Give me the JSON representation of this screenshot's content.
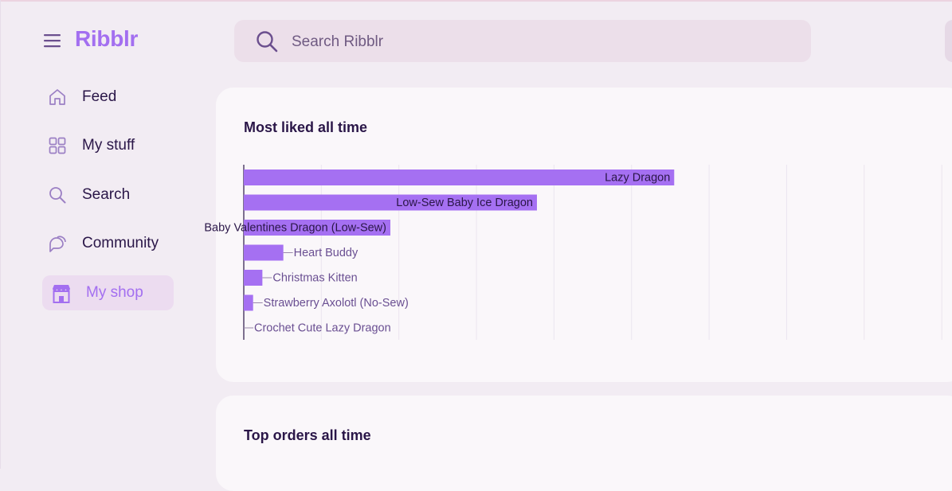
{
  "app": {
    "brand": "Ribblr"
  },
  "search": {
    "placeholder": "Search Ribblr"
  },
  "sidebar": {
    "items": [
      {
        "label": "Feed",
        "icon": "home-icon",
        "active": false
      },
      {
        "label": "My stuff",
        "icon": "grid-icon",
        "active": false
      },
      {
        "label": "Search",
        "icon": "search-icon",
        "active": false
      },
      {
        "label": "Community",
        "icon": "chat-bubbles-icon",
        "active": false
      },
      {
        "label": "My shop",
        "icon": "shop-icon",
        "active": true
      }
    ]
  },
  "colors": {
    "accent": "#a36ff0",
    "bar": "#a570f2",
    "background": "#f2ecf3",
    "card": "#faf7fa"
  },
  "cards": {
    "most_liked_title": "Most liked all time",
    "top_orders_title": "Top orders all time"
  },
  "chart_data": {
    "type": "bar",
    "orientation": "horizontal",
    "categories": [
      "Lazy Dragon",
      "Low-Sew Baby Ice Dragon",
      "Baby Valentines Dragon (Low-Sew)",
      "Heart Buddy",
      "Christmas Kitten",
      "Strawberry Axolotl (No-Sew)",
      "Crochet Cute Lazy Dragon"
    ],
    "values": [
      555,
      378,
      189,
      51,
      24,
      12,
      0
    ],
    "xlim": [
      0,
      900
    ],
    "grid": true,
    "title": "",
    "xlabel": "",
    "ylabel": ""
  }
}
